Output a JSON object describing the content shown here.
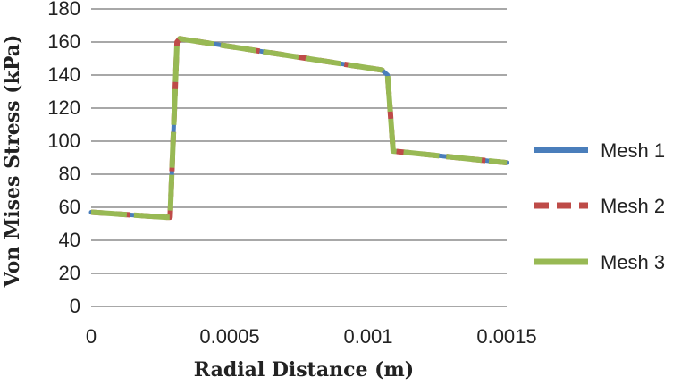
{
  "chart_data": {
    "type": "line",
    "title": "",
    "xlabel": "Radial Distance (m)",
    "ylabel": "Von Mises Stress (kPa)",
    "xlim": [
      0,
      0.0015
    ],
    "ylim": [
      0,
      180
    ],
    "x_ticks": [
      0,
      0.0005,
      0.001,
      0.0015
    ],
    "x_tick_labels": [
      "0",
      "0.0005",
      "0.001",
      "0.0015"
    ],
    "y_ticks": [
      0,
      20,
      40,
      60,
      80,
      100,
      120,
      140,
      160,
      180
    ],
    "y_tick_labels": [
      "0",
      "20",
      "40",
      "60",
      "80",
      "100",
      "120",
      "140",
      "160",
      "180"
    ],
    "grid": "horizontal",
    "legend_position": "right",
    "series": [
      {
        "name": "Mesh 1",
        "color": "#4a7ebb",
        "style": "solid",
        "x": [
          0,
          0.00027,
          0.000285,
          0.00031,
          0.00032,
          0.00105,
          0.00107,
          0.00109,
          0.0015
        ],
        "y": [
          57,
          54,
          54,
          160,
          162,
          143,
          140,
          94,
          87
        ]
      },
      {
        "name": "Mesh 2",
        "color": "#be4b48",
        "style": "dashed",
        "x": [
          0,
          0.00027,
          0.000285,
          0.00031,
          0.00032,
          0.00105,
          0.00107,
          0.00109,
          0.0015
        ],
        "y": [
          57,
          54,
          54,
          160,
          162,
          143,
          140,
          94,
          87
        ]
      },
      {
        "name": "Mesh 3",
        "color": "#98b954",
        "style": "long-dash",
        "x": [
          0,
          0.00027,
          0.000285,
          0.00031,
          0.00032,
          0.00105,
          0.00107,
          0.00109,
          0.0015
        ],
        "y": [
          57,
          54,
          54,
          160,
          162,
          143,
          140,
          94,
          87
        ]
      }
    ]
  }
}
